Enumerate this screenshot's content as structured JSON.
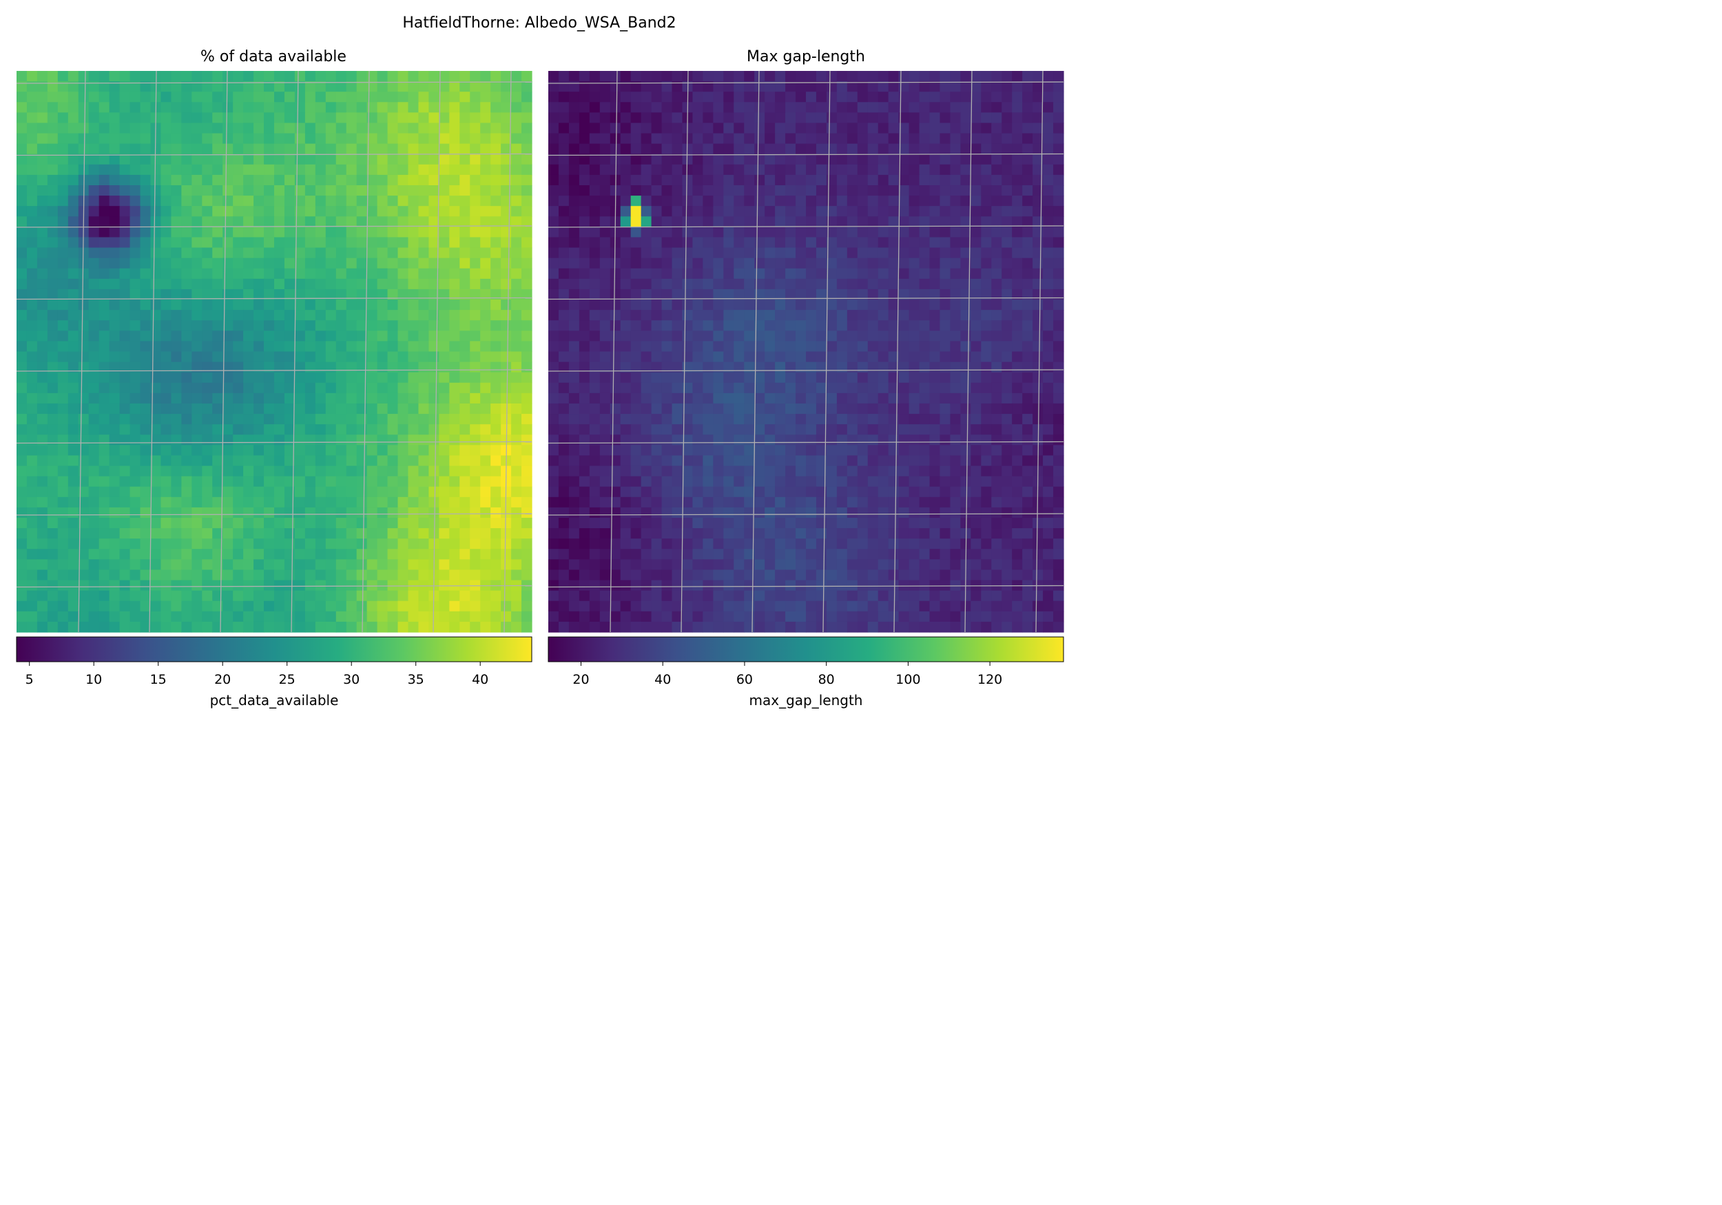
{
  "chart_data": {
    "type": "heatmap",
    "suptitle": "HatfieldThorne: Albedo_WSA_Band2",
    "colormap": "viridis",
    "grid": true,
    "grid_color": "#b0b0b0",
    "panels": [
      {
        "title": "% of data available",
        "colorbar_label": "pct_data_available",
        "colorbar_range": [
          4,
          44
        ],
        "colorbar_ticks": [
          "5",
          "10",
          "15",
          "20",
          "25",
          "30",
          "35",
          "40"
        ],
        "rows": 54,
        "cols": 50,
        "typical_value": 30,
        "value_range": [
          4,
          44
        ],
        "features": [
          {
            "note": "minimum patch",
            "row": 13.5,
            "col": 8.5,
            "value": 4,
            "radius": 2.5
          },
          {
            "note": "high region",
            "row": 52,
            "col": 40,
            "value": 41
          },
          {
            "note": "high region",
            "row": 37,
            "col": 48,
            "value": 42
          },
          {
            "note": "high region",
            "row": 44,
            "col": 16,
            "value": 38
          },
          {
            "note": "high region",
            "row": 15,
            "col": 20,
            "value": 36
          },
          {
            "note": "high region",
            "row": 5,
            "col": 41,
            "value": 37
          },
          {
            "note": "high region",
            "row": 3,
            "col": 2,
            "value": 36
          },
          {
            "note": "high region",
            "row": 16,
            "col": 45,
            "value": 37
          },
          {
            "note": "low region",
            "row": 31,
            "col": 16,
            "value": 22
          },
          {
            "note": "low region",
            "row": 24,
            "col": 22,
            "value": 25
          },
          {
            "note": "low region",
            "row": 19,
            "col": 2,
            "value": 24
          },
          {
            "note": "low region",
            "row": 50,
            "col": 9,
            "value": 25
          },
          {
            "note": "low region",
            "row": 50,
            "col": 26,
            "value": 25
          },
          {
            "note": "low region",
            "row": 3,
            "col": 10,
            "value": 26
          }
        ]
      },
      {
        "title": "Max gap-length",
        "colorbar_label": "max_gap_length",
        "colorbar_range": [
          12,
          138
        ],
        "colorbar_ticks": [
          "20",
          "40",
          "60",
          "80",
          "100",
          "120"
        ],
        "rows": 54,
        "cols": 50,
        "typical_value": 25,
        "value_range": [
          12,
          138
        ],
        "features": [
          {
            "note": "peak cells",
            "cells": [
              {
                "row": 13,
                "col": 8,
                "value": 137
              },
              {
                "row": 14,
                "col": 8,
                "value": 137
              },
              {
                "row": 12,
                "col": 8,
                "value": 92
              },
              {
                "row": 14,
                "col": 7,
                "value": 80
              },
              {
                "row": 14,
                "col": 9,
                "value": 86
              },
              {
                "row": 13,
                "col": 7,
                "value": 48
              },
              {
                "row": 13,
                "col": 9,
                "value": 48
              },
              {
                "row": 15,
                "col": 8,
                "value": 45
              }
            ]
          },
          {
            "note": "elevated region",
            "row": 24,
            "col": 21,
            "value": 40
          },
          {
            "note": "elevated region",
            "row": 36,
            "col": 16,
            "value": 38
          },
          {
            "note": "elevated region",
            "row": 48,
            "col": 24,
            "value": 38
          },
          {
            "note": "elevated region",
            "row": 26,
            "col": 43,
            "value": 36
          },
          {
            "note": "low region",
            "row": 6,
            "col": 2,
            "value": 16
          },
          {
            "note": "low region",
            "row": 44,
            "col": 2,
            "value": 16
          },
          {
            "note": "low region",
            "row": 30,
            "col": 48,
            "value": 17
          }
        ]
      }
    ]
  }
}
